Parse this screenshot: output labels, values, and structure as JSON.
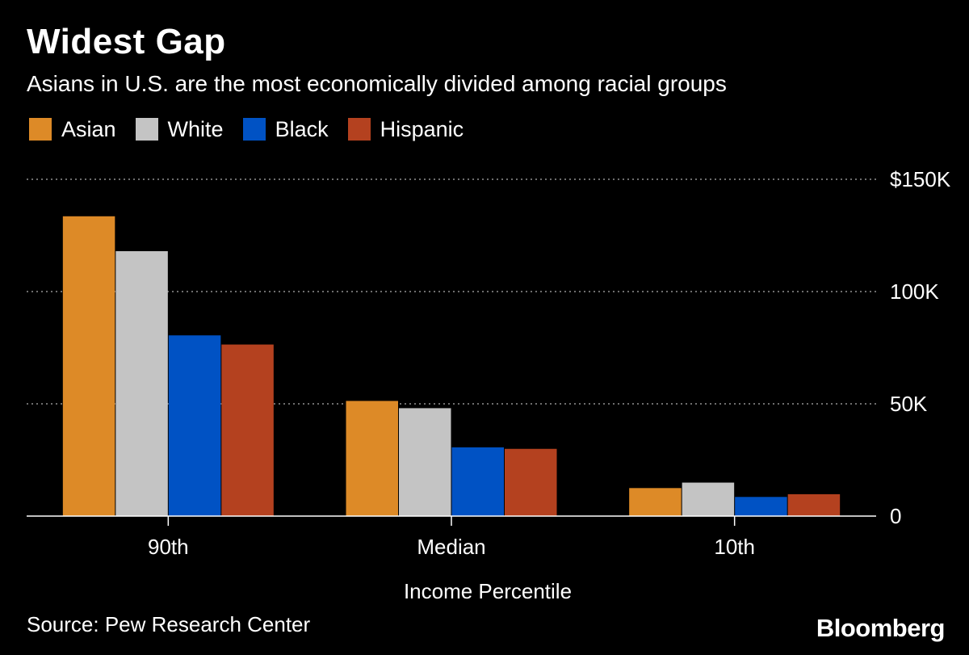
{
  "title": "Widest Gap",
  "subtitle": "Asians in U.S. are the most economically divided among racial groups",
  "source": "Source: Pew Research Center",
  "brand": "Bloomberg",
  "colors": {
    "background": "#000000",
    "gridline": "#6e6e6e",
    "axis": "#ffffff",
    "Asian": "#dd8a27",
    "White": "#c4c4c4",
    "Black": "#0052c4",
    "Hispanic": "#b4411f"
  },
  "chart_data": {
    "type": "bar",
    "categories": [
      "90th",
      "Median",
      "10th"
    ],
    "series": [
      {
        "name": "Asian",
        "values": [
          133529,
          51288,
          12478
        ]
      },
      {
        "name": "White",
        "values": [
          117986,
          48059,
          14914
        ]
      },
      {
        "name": "Black",
        "values": [
          80489,
          30618,
          8528
        ]
      },
      {
        "name": "Hispanic",
        "values": [
          76413,
          29943,
          9750
        ]
      }
    ],
    "xlabel": "Income Percentile",
    "ylabel": "",
    "ylim": [
      0,
      150000
    ],
    "yticks": [
      0,
      50000,
      100000,
      150000
    ],
    "ytick_labels": [
      "0",
      "50K",
      "100K",
      "$150K"
    ],
    "grid": true,
    "legend": "top-left"
  }
}
